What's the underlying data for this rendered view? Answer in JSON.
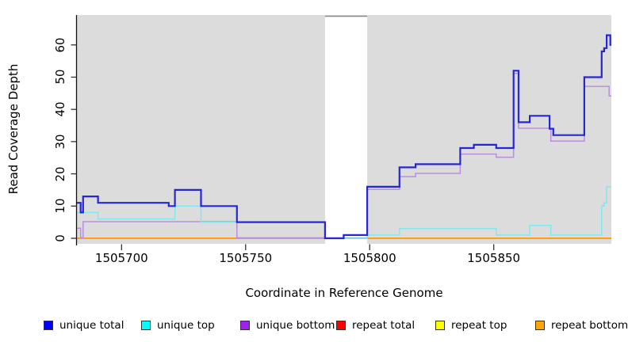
{
  "chart_data": {
    "type": "line",
    "subtype": "step-coverage",
    "title": "",
    "xlabel": "Coordinate in Reference Genome",
    "ylabel": "Read Coverage Depth",
    "x_ticks": [
      1505700,
      1505750,
      1505800,
      1505850
    ],
    "y_ticks": [
      0,
      10,
      20,
      30,
      40,
      50,
      60
    ],
    "x_range": [
      1505682,
      1505897.4
    ],
    "ylim": [
      0,
      66
    ],
    "grid": "off",
    "plot_bg": "#DCDCDC",
    "masked_region": {
      "from": 1505782,
      "to": 1505799,
      "color": "#FFFFFF",
      "edge_color": "#8A8A8A"
    },
    "legend_position": "bottom",
    "series": [
      {
        "name": "unique total",
        "line_color": "#2626D8",
        "legend_fill": "#0000FF",
        "line_width": 2.2,
        "points": [
          [
            1505682,
            11
          ],
          [
            1505683.5,
            8
          ],
          [
            1505684.5,
            13
          ],
          [
            1505690.5,
            11
          ],
          [
            1505719,
            10
          ],
          [
            1505721.5,
            15
          ],
          [
            1505732,
            10
          ],
          [
            1505746.5,
            5
          ],
          [
            1505782,
            0
          ],
          [
            1505789.5,
            1
          ],
          [
            1505799,
            16
          ],
          [
            1505812,
            22
          ],
          [
            1505818.5,
            23
          ],
          [
            1505836.5,
            28
          ],
          [
            1505842,
            29
          ],
          [
            1505851,
            28
          ],
          [
            1505858,
            52
          ],
          [
            1505860,
            36
          ],
          [
            1505864.5,
            38
          ],
          [
            1505872.5,
            34
          ],
          [
            1505874,
            32
          ],
          [
            1505886.5,
            50
          ],
          [
            1505893.5,
            58
          ],
          [
            1505894.5,
            59
          ],
          [
            1505895.5,
            63
          ],
          [
            1505897,
            60
          ]
        ]
      },
      {
        "name": "unique top",
        "line_color": "#80E8EF",
        "legend_fill": "#00FFFF",
        "line_width": 1.5,
        "points": [
          [
            1505682,
            8
          ],
          [
            1505690.5,
            6
          ],
          [
            1505721.5,
            10
          ],
          [
            1505732,
            5
          ],
          [
            1505782,
            0
          ],
          [
            1505799,
            1
          ],
          [
            1505812,
            3
          ],
          [
            1505851,
            1
          ],
          [
            1505864.5,
            4
          ],
          [
            1505873,
            1
          ],
          [
            1505893.5,
            10
          ],
          [
            1505894.5,
            11
          ],
          [
            1505895.5,
            16
          ]
        ]
      },
      {
        "name": "unique bottom",
        "line_color": "#BB8EDC",
        "legend_fill": "#A020F0",
        "line_width": 1.5,
        "points": [
          [
            1505682,
            3
          ],
          [
            1505683.5,
            0
          ],
          [
            1505684.5,
            5
          ],
          [
            1505746.5,
            0
          ],
          [
            1505799,
            15
          ],
          [
            1505812,
            19
          ],
          [
            1505818.5,
            20
          ],
          [
            1505836.5,
            26
          ],
          [
            1505851,
            25
          ],
          [
            1505858,
            51
          ],
          [
            1505860,
            34
          ],
          [
            1505873,
            30
          ],
          [
            1505886.5,
            47
          ],
          [
            1505896.5,
            44
          ]
        ]
      },
      {
        "name": "repeat total",
        "line_color": "#FF0000",
        "legend_fill": "#FF0000",
        "line_width": 1.5,
        "points": [
          [
            1505682,
            0
          ]
        ]
      },
      {
        "name": "repeat top",
        "line_color": "#FFFF00",
        "legend_fill": "#FFFF00",
        "line_width": 1.5,
        "points": [
          [
            1505682,
            0
          ]
        ]
      },
      {
        "name": "repeat bottom",
        "line_color": "#FFA013",
        "legend_fill": "#FFA500",
        "line_width": 1.9,
        "points": [
          [
            1505682,
            0
          ]
        ]
      }
    ]
  }
}
